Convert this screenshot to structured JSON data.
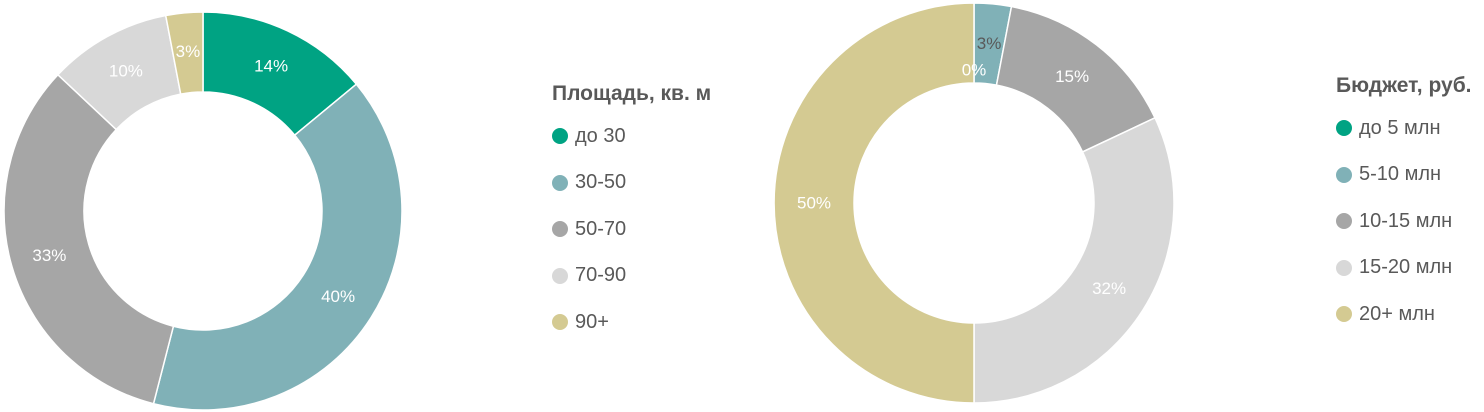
{
  "chart_data": [
    {
      "type": "pie",
      "title": "Площадь, кв. м",
      "categories": [
        "до 30",
        "30-50",
        "50-70",
        "70-90",
        "90+"
      ],
      "values": [
        14,
        40,
        33,
        10,
        3
      ],
      "labels": [
        "14%",
        "40%",
        "33%",
        "10%",
        "3%"
      ],
      "colors": [
        "#00a383",
        "#80b1b7",
        "#a6a6a6",
        "#d8d8d8",
        "#d4ca92"
      ],
      "label_colors": [
        "#ffffff",
        "#ffffff",
        "#ffffff",
        "#ffffff",
        "#ffffff"
      ],
      "legend": "right"
    },
    {
      "type": "pie",
      "title": "Бюджет, руб.",
      "categories": [
        "до 5 млн",
        "5-10 млн",
        "10-15 млн",
        "15-20 млн",
        "20+ млн"
      ],
      "values": [
        0,
        3,
        15,
        32,
        50
      ],
      "labels": [
        "0%",
        "3%",
        "15%",
        "32%",
        "50%"
      ],
      "colors": [
        "#00a383",
        "#80b1b7",
        "#a6a6a6",
        "#d8d8d8",
        "#d4ca92"
      ],
      "label_colors": [
        "#ffffff",
        "#595959",
        "#ffffff",
        "#ffffff",
        "#ffffff"
      ],
      "legend": "right"
    }
  ]
}
